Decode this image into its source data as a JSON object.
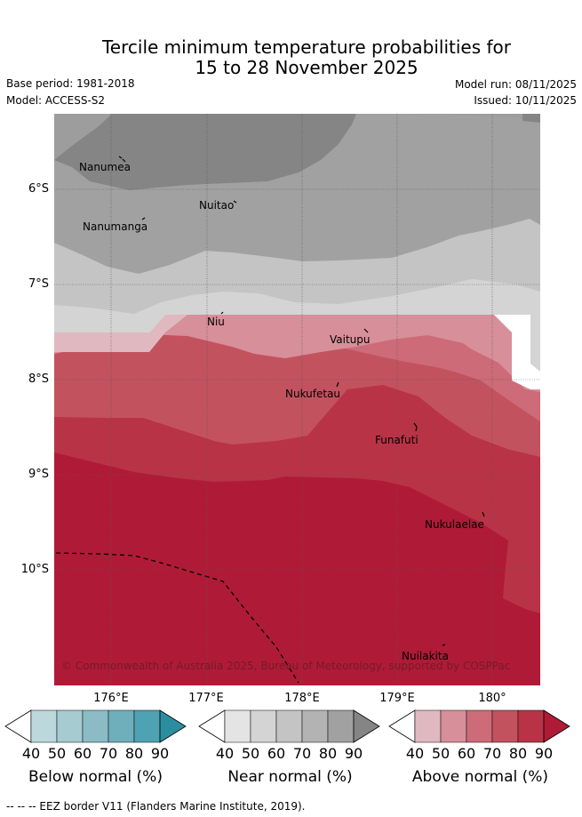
{
  "header": {
    "title_line1": "Tercile minimum temperature probabilities for",
    "title_line2": "15 to 28 November 2025",
    "base_period": "Base period: 1981-2018",
    "model": "Model: ACCESS-S2",
    "model_run": "Model run: 08/11/2025",
    "issued": "Issued: 10/11/2025"
  },
  "map": {
    "y_labels": [
      "6°S",
      "7°S",
      "8°S",
      "9°S",
      "10°S"
    ],
    "x_labels": [
      "176°E",
      "177°E",
      "178°E",
      "179°E",
      "180°"
    ],
    "places": {
      "nanumea": "Nanumea",
      "nuitao": "Nuitao",
      "nanumanga": "Nanumanga",
      "niu": "Niu",
      "vaitupu": "Vaitupu",
      "nukufetau": "Nukufetau",
      "funafuti": "Funafuti",
      "nukulaelae": "Nukulaelae",
      "nuilakita": "Nuilakita"
    },
    "copyright": "© Commonwealth of Australia 2025, Bureau of Meteorology, supported by COSPPac"
  },
  "colorbars": {
    "ticks": [
      "40",
      "50",
      "60",
      "70",
      "80",
      "90"
    ],
    "below": {
      "title": "Below normal (%)",
      "colors": [
        "#ffffff",
        "#bdd8dd",
        "#a6cbd1",
        "#8bbcc6",
        "#6faebb",
        "#4ea2b1",
        "#2b8e9f"
      ]
    },
    "near": {
      "title": "Near normal (%)",
      "colors": [
        "#ffffff",
        "#e4e4e4",
        "#d4d4d4",
        "#c4c4c4",
        "#b3b3b3",
        "#a1a1a1",
        "#858585"
      ]
    },
    "above": {
      "title": "Above normal (%)",
      "colors": [
        "#ffffff",
        "#e0b9c0",
        "#d78f99",
        "#cd6b78",
        "#c3525f",
        "#b93346",
        "#af1b36"
      ]
    }
  },
  "footer": {
    "legend": "-- -- -- EEZ border V11 (Flanders Marine Institute, 2019)."
  }
}
